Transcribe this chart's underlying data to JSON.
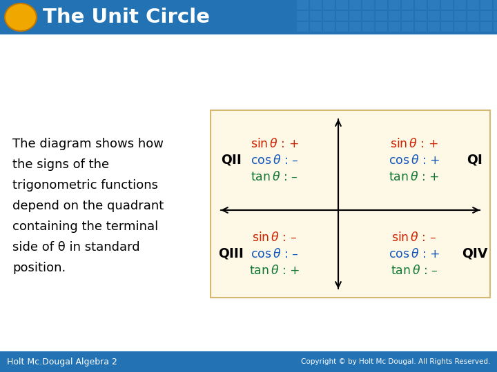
{
  "title": "The Unit Circle",
  "title_color": "#FFFFFF",
  "title_bg_color": "#2272B4",
  "background_color": "#FFFFFF",
  "diagram_bg_color": "#FEF9E7",
  "bottom_bar_color": "#2272B4",
  "circle_color": "#F0A800",
  "body_text_lines": [
    "The diagram shows how",
    "the signs of the",
    "trigonometric functions",
    "depend on the quadrant",
    "containing the terminal",
    "side of θ in standard",
    "position."
  ],
  "body_text_color": "#000000",
  "footer_left": "Holt Mc.Dougal Algebra 2",
  "footer_right": "Copyright © by Holt Mc Dougal. All Rights Reserved.",
  "sin_color": "#CC2200",
  "cos_color": "#1155BB",
  "tan_color": "#117733",
  "quad_label_color": "#000000",
  "QI": {
    "sin": "+",
    "cos": "+",
    "tan": "+"
  },
  "QII": {
    "sin": "+",
    "cos": "–",
    "tan": "–"
  },
  "QIII": {
    "sin": "–",
    "cos": "–",
    "tan": "+"
  },
  "QIV": {
    "sin": "–",
    "cos": "+",
    "tan": "–"
  },
  "tile_color": "#3A88C8",
  "tile_cols": 19,
  "tile_rows": 3
}
